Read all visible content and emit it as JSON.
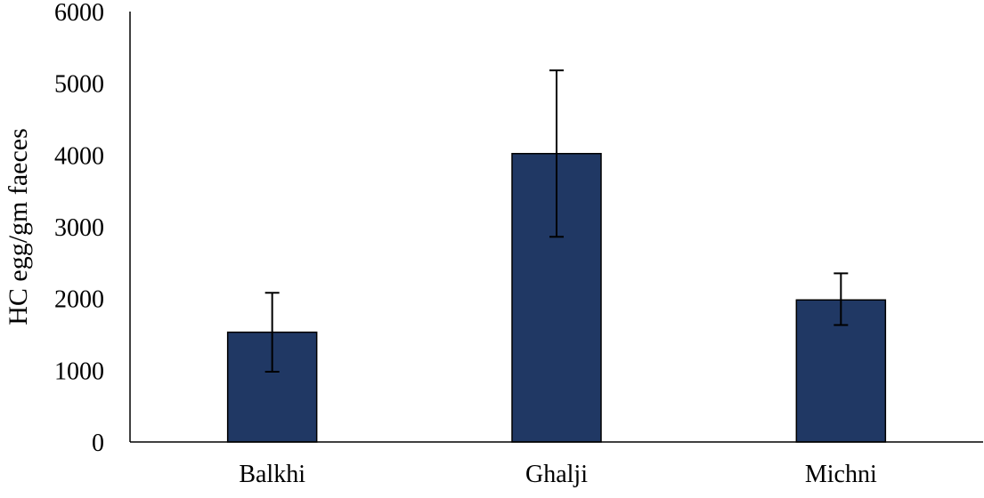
{
  "chart_data": {
    "type": "bar",
    "title": "",
    "xlabel": "",
    "ylabel": "HC egg/gm faeces",
    "categories": [
      "Balkhi",
      "Ghalji",
      "Michni"
    ],
    "values": [
      1530,
      4020,
      1980
    ],
    "error_low": [
      980,
      2860,
      1630
    ],
    "error_high": [
      2080,
      5180,
      2350
    ],
    "ylim": [
      0,
      6000
    ],
    "yticks": [
      "0",
      "1000",
      "2000",
      "3000",
      "4000",
      "5000",
      "6000"
    ],
    "bar_color": "#203864",
    "grid": false,
    "legend": "none"
  }
}
